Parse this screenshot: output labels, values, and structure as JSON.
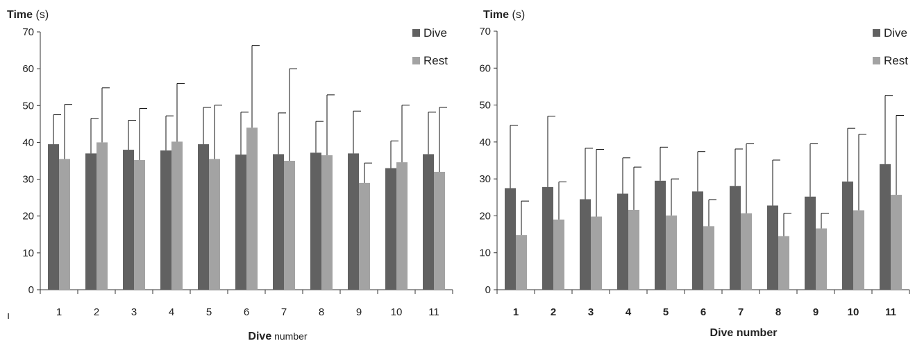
{
  "colors": {
    "dive": "#616161",
    "rest": "#a3a3a3",
    "axis": "#333333",
    "errorbar": "#111111"
  },
  "chart_data": [
    {
      "type": "bar",
      "ytitle_bold": "Time",
      "ytitle_rest": " (s)",
      "xtitle_bold": "Dive",
      "xtitle_rest": " number",
      "stray_mark": "ı",
      "ylim": [
        0,
        70
      ],
      "yticks": [
        "0",
        "10",
        "20",
        "30",
        "40",
        "50",
        "60",
        "70"
      ],
      "categories": [
        "1",
        "2",
        "3",
        "4",
        "5",
        "6",
        "7",
        "8",
        "9",
        "10",
        "11"
      ],
      "tick_bold": false,
      "legend": [
        "Dive",
        "Rest"
      ],
      "legend_position": "top-right",
      "series": [
        {
          "name": "Dive",
          "values": [
            39.5,
            37,
            38,
            37.8,
            39.5,
            36.7,
            36.8,
            37.2,
            37,
            33,
            36.8
          ],
          "errors": [
            8,
            9.5,
            8,
            9.4,
            10,
            11.5,
            11.2,
            8.5,
            11.5,
            7.4,
            11.4
          ]
        },
        {
          "name": "Rest",
          "values": [
            35.5,
            40,
            35.2,
            40.2,
            35.5,
            44,
            35,
            36.5,
            29,
            34.6,
            32
          ],
          "errors": [
            14.8,
            14.8,
            14,
            15.8,
            14.6,
            22.3,
            25,
            16.4,
            5.4,
            15.5,
            17.5
          ]
        }
      ]
    },
    {
      "type": "bar",
      "ytitle_bold": "Time",
      "ytitle_rest": " (s)",
      "xtitle_bold": "Dive number",
      "xtitle_rest": "",
      "ylim": [
        0,
        70
      ],
      "yticks": [
        "0",
        "10",
        "20",
        "30",
        "40",
        "50",
        "60",
        "70"
      ],
      "categories": [
        "1",
        "2",
        "3",
        "4",
        "5",
        "6",
        "7",
        "8",
        "9",
        "10",
        "11"
      ],
      "tick_bold": true,
      "legend": [
        "Dive",
        "Rest"
      ],
      "legend_position": "top-right",
      "series": [
        {
          "name": "Dive",
          "values": [
            27.5,
            27.8,
            24.5,
            26,
            29.5,
            26.6,
            28.1,
            22.8,
            25.2,
            29.3,
            34
          ],
          "errors": [
            17,
            19.2,
            13.8,
            9.7,
            9.1,
            10.8,
            10,
            12.3,
            14.3,
            14.4,
            18.6
          ]
        },
        {
          "name": "Rest",
          "values": [
            14.8,
            19,
            19.8,
            21.6,
            20.1,
            17.2,
            20.7,
            14.5,
            16.6,
            21.5,
            25.7
          ],
          "errors": [
            9.2,
            10.2,
            18.2,
            11.6,
            9.9,
            7.2,
            18.8,
            6.2,
            4.1,
            20.6,
            21.5
          ]
        }
      ]
    }
  ]
}
